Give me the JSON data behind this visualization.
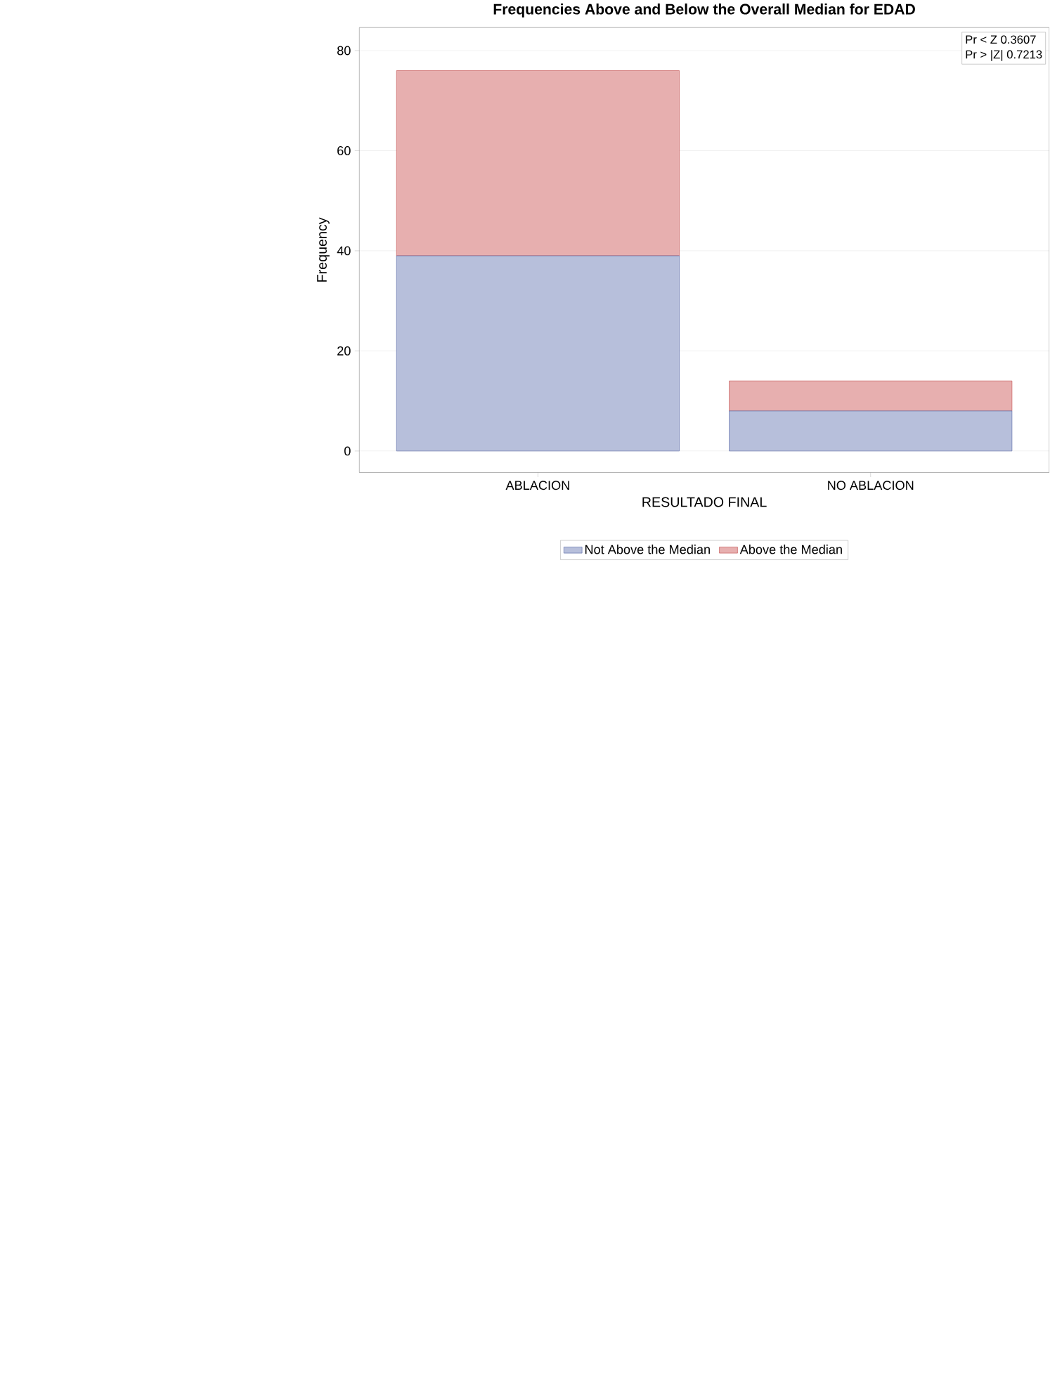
{
  "chart_data": {
    "type": "bar",
    "title": "Frequencies Above and Below the Overall Median for EDAD",
    "xlabel": "RESULTADO FINAL",
    "ylabel": "Frequency",
    "categories": [
      "ABLACION",
      "NO ABLACION"
    ],
    "series": [
      {
        "name": "Not Above the Median",
        "color": "#b7bfdb",
        "values": [
          39,
          8
        ]
      },
      {
        "name": "Above the Median",
        "color": "#e7afaf",
        "values": [
          37,
          6
        ]
      }
    ],
    "stacked": true,
    "ylim": [
      -4.3,
      84.6
    ],
    "yticks": [
      0,
      20,
      40,
      60,
      80
    ],
    "grid": "y",
    "legend": "bottom",
    "annotations": [
      "Pr < Z    0.3607",
      "Pr > |Z|  0.7213"
    ]
  }
}
